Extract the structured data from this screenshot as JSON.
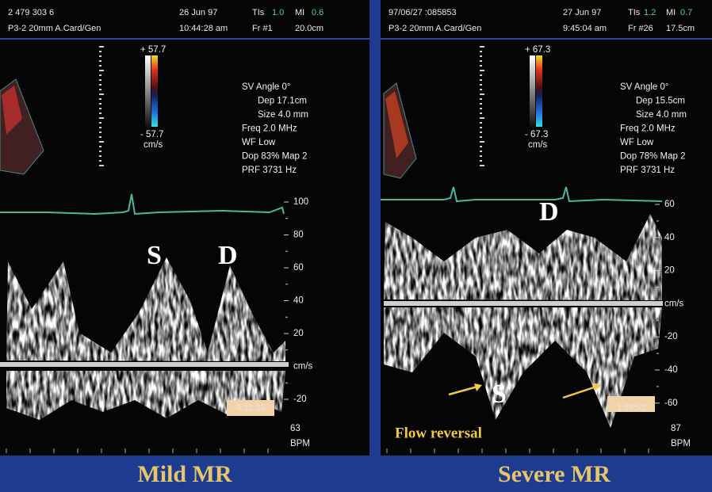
{
  "panels": [
    {
      "header": {
        "row1": [
          "2 479 303 6",
          "26 Jun 97",
          "TIs",
          "1.0",
          "MI",
          "0.6"
        ],
        "row2": [
          "P3-2 20mm A.Card/Gen",
          "10:44:28 am",
          "Fr #1",
          "20.0cm"
        ]
      },
      "colorbar": [
        "+ 57.7",
        "- 57.7",
        "cm/s"
      ],
      "params": [
        "SV Angle 0°",
        "Dep 17.1cm",
        "Size 4.0  mm",
        "Freq 2.0  MHz",
        "WF Low",
        "Dop 83%  Map 2",
        "PRF 3731  Hz"
      ],
      "scale": [
        "100",
        "80",
        "60",
        "40",
        "20",
        "cm/s",
        "-20"
      ],
      "heart_rate": [
        "63",
        "BPM"
      ],
      "timer": "0:31:33",
      "labels": [
        "S",
        "D"
      ],
      "caption": "Mild MR"
    },
    {
      "header": {
        "row1": [
          "97/06/27 :085853",
          "27 Jun 97",
          "TIs",
          "1.2",
          "MI",
          "0.7"
        ],
        "row2": [
          "P3-2 20mm A.Card/Gen",
          "9:45:04 am",
          "Fr #26",
          "17.5cm"
        ]
      },
      "colorbar": [
        "+ 67.3",
        "- 67.3",
        "cm/s"
      ],
      "params": [
        "SV Angle 0°",
        "Dep 15.5cm",
        "Size 4.0  mm",
        "Freq 2.0  MHz",
        "WF Low",
        "Dop 78%  Map 2",
        "PRF 3731  Hz"
      ],
      "scale": [
        "60",
        "40",
        "20",
        "cm/s",
        "-20",
        "-40",
        "-60"
      ],
      "heart_rate": [
        "87",
        "BPM"
      ],
      "timer": "1:07:52",
      "labels": [
        "D",
        "S"
      ],
      "annotation": "Flow reversal",
      "caption": "Severe MR"
    }
  ]
}
